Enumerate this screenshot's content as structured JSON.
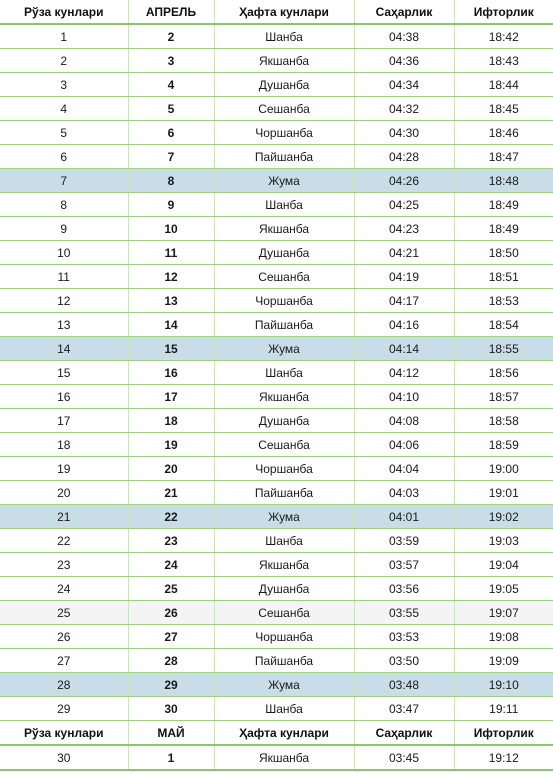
{
  "header": {
    "fasting_day": "Рўза кунлари",
    "month": "АПРЕЛЬ",
    "weekday": "Ҳафта кунлари",
    "suhoor": "Саҳарлик",
    "iftar": "Ифторлик"
  },
  "rows": [
    {
      "fasting_day": "1",
      "day": "2",
      "weekday": "Шанба",
      "suhoor": "04:38",
      "iftar": "18:42",
      "highlight": false
    },
    {
      "fasting_day": "2",
      "day": "3",
      "weekday": "Якшанба",
      "suhoor": "04:36",
      "iftar": "18:43",
      "highlight": false
    },
    {
      "fasting_day": "3",
      "day": "4",
      "weekday": "Душанба",
      "suhoor": "04:34",
      "iftar": "18:44",
      "highlight": false
    },
    {
      "fasting_day": "4",
      "day": "5",
      "weekday": "Сешанба",
      "suhoor": "04:32",
      "iftar": "18:45",
      "highlight": false
    },
    {
      "fasting_day": "5",
      "day": "6",
      "weekday": "Чоршанба",
      "suhoor": "04:30",
      "iftar": "18:46",
      "highlight": false
    },
    {
      "fasting_day": "6",
      "day": "7",
      "weekday": "Пайшанба",
      "suhoor": "04:28",
      "iftar": "18:47",
      "highlight": false
    },
    {
      "fasting_day": "7",
      "day": "8",
      "weekday": "Жума",
      "suhoor": "04:26",
      "iftar": "18:48",
      "highlight": true
    },
    {
      "fasting_day": "8",
      "day": "9",
      "weekday": "Шанба",
      "suhoor": "04:25",
      "iftar": "18:49",
      "highlight": false
    },
    {
      "fasting_day": "9",
      "day": "10",
      "weekday": "Якшанба",
      "suhoor": "04:23",
      "iftar": "18:49",
      "highlight": false
    },
    {
      "fasting_day": "10",
      "day": "11",
      "weekday": "Душанба",
      "suhoor": "04:21",
      "iftar": "18:50",
      "highlight": false
    },
    {
      "fasting_day": "11",
      "day": "12",
      "weekday": "Сешанба",
      "suhoor": "04:19",
      "iftar": "18:51",
      "highlight": false
    },
    {
      "fasting_day": "12",
      "day": "13",
      "weekday": "Чоршанба",
      "suhoor": "04:17",
      "iftar": "18:53",
      "highlight": false
    },
    {
      "fasting_day": "13",
      "day": "14",
      "weekday": "Пайшанба",
      "suhoor": "04:16",
      "iftar": "18:54",
      "highlight": false
    },
    {
      "fasting_day": "14",
      "day": "15",
      "weekday": "Жума",
      "suhoor": "04:14",
      "iftar": "18:55",
      "highlight": true
    },
    {
      "fasting_day": "15",
      "day": "16",
      "weekday": "Шанба",
      "suhoor": "04:12",
      "iftar": "18:56",
      "highlight": false
    },
    {
      "fasting_day": "16",
      "day": "17",
      "weekday": "Якшанба",
      "suhoor": "04:10",
      "iftar": "18:57",
      "highlight": false
    },
    {
      "fasting_day": "17",
      "day": "18",
      "weekday": "Душанба",
      "suhoor": "04:08",
      "iftar": "18:58",
      "highlight": false
    },
    {
      "fasting_day": "18",
      "day": "19",
      "weekday": "Сешанба",
      "suhoor": "04:06",
      "iftar": "18:59",
      "highlight": false
    },
    {
      "fasting_day": "19",
      "day": "20",
      "weekday": "Чоршанба",
      "suhoor": "04:04",
      "iftar": "19:00",
      "highlight": false
    },
    {
      "fasting_day": "20",
      "day": "21",
      "weekday": "Пайшанба",
      "suhoor": "04:03",
      "iftar": "19:01",
      "highlight": false
    },
    {
      "fasting_day": "21",
      "day": "22",
      "weekday": "Жума",
      "suhoor": "04:01",
      "iftar": "19:02",
      "highlight": true
    },
    {
      "fasting_day": "22",
      "day": "23",
      "weekday": "Шанба",
      "suhoor": "03:59",
      "iftar": "19:03",
      "highlight": false
    },
    {
      "fasting_day": "23",
      "day": "24",
      "weekday": "Якшанба",
      "suhoor": "03:57",
      "iftar": "19:04",
      "highlight": false
    },
    {
      "fasting_day": "24",
      "day": "25",
      "weekday": "Душанба",
      "suhoor": "03:56",
      "iftar": "19:05",
      "highlight": false
    },
    {
      "fasting_day": "25",
      "day": "26",
      "weekday": "Сешанба",
      "suhoor": "03:55",
      "iftar": "19:07",
      "highlight": false,
      "alt": true
    },
    {
      "fasting_day": "26",
      "day": "27",
      "weekday": "Чоршанба",
      "suhoor": "03:53",
      "iftar": "19:08",
      "highlight": false
    },
    {
      "fasting_day": "27",
      "day": "28",
      "weekday": "Пайшанба",
      "suhoor": "03:50",
      "iftar": "19:09",
      "highlight": false
    },
    {
      "fasting_day": "28",
      "day": "29",
      "weekday": "Жума",
      "suhoor": "03:48",
      "iftar": "19:10",
      "highlight": true
    },
    {
      "fasting_day": "29",
      "day": "30",
      "weekday": "Шанба",
      "suhoor": "03:47",
      "iftar": "19:11",
      "highlight": false
    }
  ],
  "header2": {
    "fasting_day": "Рўза кунлари",
    "month": "МАЙ",
    "weekday": "Ҳафта кунлари",
    "suhoor": "Саҳарлик",
    "iftar": "Ифторлик"
  },
  "rows2": [
    {
      "fasting_day": "30",
      "day": "1",
      "weekday": "Якшанба",
      "suhoor": "03:45",
      "iftar": "19:12",
      "highlight": false
    }
  ],
  "colors": {
    "friday_highlight": "#c9dde9",
    "border_green": "#9ecf85"
  }
}
